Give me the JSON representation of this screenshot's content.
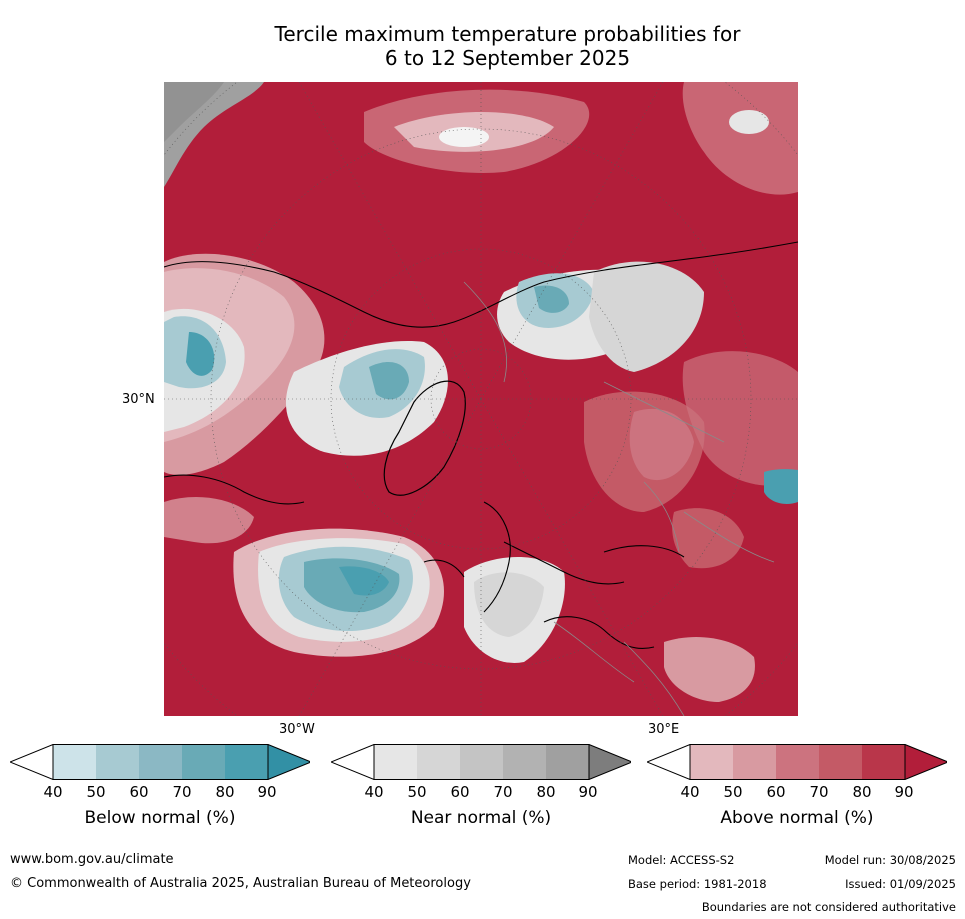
{
  "title": {
    "line1": "Tercile maximum temperature probabilities for",
    "line2": "6 to 12 September 2025"
  },
  "map": {
    "lat_label": "30°N",
    "lon_labels": [
      "30°W",
      "30°E"
    ]
  },
  "legends": [
    {
      "label": "Below normal (%)",
      "ticks": [
        "40",
        "50",
        "60",
        "70",
        "80",
        "90"
      ],
      "colors": [
        "#ffffff",
        "#cde3e9",
        "#a7cad2",
        "#8bb8c4",
        "#69aab6",
        "#4a9fb0",
        "#3290a5"
      ]
    },
    {
      "label": "Near normal (%)",
      "ticks": [
        "40",
        "50",
        "60",
        "70",
        "80",
        "90"
      ],
      "colors": [
        "#ffffff",
        "#e6e6e6",
        "#d6d6d6",
        "#c4c4c4",
        "#b2b2b2",
        "#a0a0a0",
        "#7d7d7d"
      ]
    },
    {
      "label": "Above normal (%)",
      "ticks": [
        "40",
        "50",
        "60",
        "70",
        "80",
        "90"
      ],
      "colors": [
        "#ffffff",
        "#e3b8bd",
        "#d89aa1",
        "#cc737f",
        "#c45a66",
        "#b9364a",
        "#b21e3a"
      ]
    }
  ],
  "footer": {
    "website": "www.bom.gov.au/climate",
    "copyright": "© Commonwealth of Australia 2025, Australian Bureau of Meteorology",
    "model": "Model: ACCESS-S2",
    "model_run": "Model run: 30/08/2025",
    "base_period": "Base period: 1981-2018",
    "issued": "Issued: 01/09/2025",
    "disclaimer": "Boundaries are not considered authoritative"
  }
}
